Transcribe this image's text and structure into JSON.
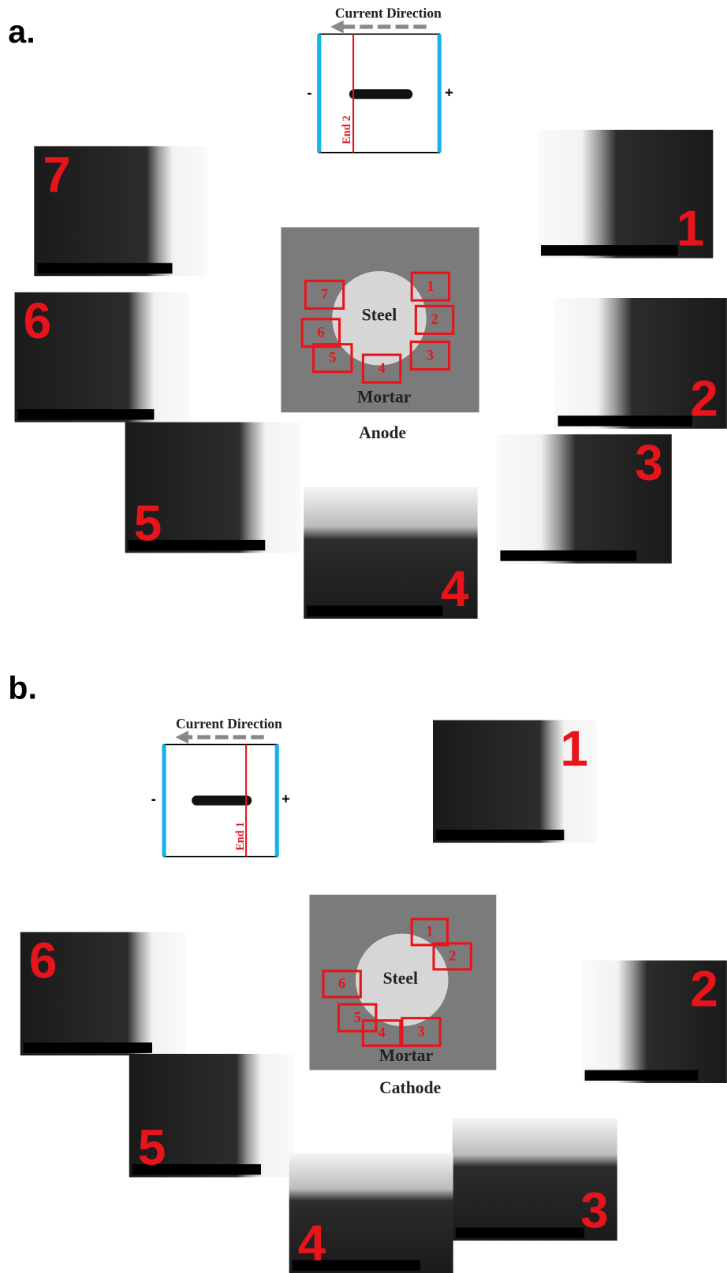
{
  "panels": [
    {
      "label": "a.",
      "current_direction": "Current Direction",
      "minus": "-",
      "plus": "+",
      "end_label": "End 2",
      "steel": "Steel",
      "mortar": "Mortar",
      "region": "Anode",
      "box_labels": [
        "1",
        "2",
        "3",
        "4",
        "5",
        "6",
        "7"
      ],
      "micrograph_labels": [
        "7",
        "1",
        "6",
        "2",
        "5",
        "3",
        "4"
      ]
    },
    {
      "label": "b.",
      "current_direction": "Current Direction",
      "minus": "-",
      "plus": "+",
      "end_label": "End 1",
      "steel": "Steel",
      "mortar": "Mortar",
      "region": "Cathode",
      "box_labels": [
        "1",
        "2",
        "3",
        "4",
        "5",
        "6"
      ],
      "micrograph_labels": [
        "1",
        "6",
        "2",
        "5",
        "3",
        "4"
      ]
    }
  ]
}
